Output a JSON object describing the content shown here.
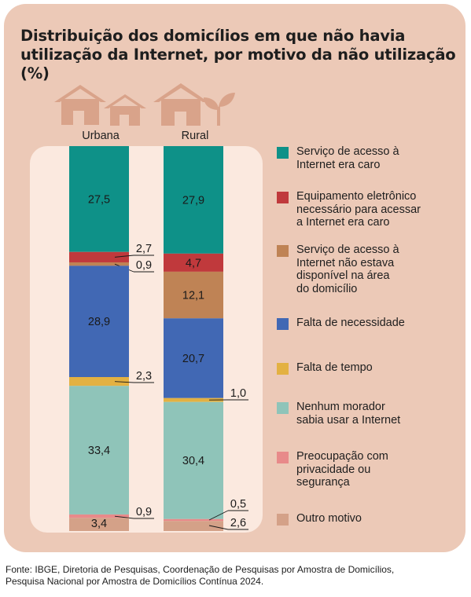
{
  "title_line1": "Distribuição dos domicílios em que não havia",
  "title_line2": "utilização da Internet, por motivo da não utilização (%)",
  "source_line1": "Fonte: IBGE, Diretoria de Pesquisas, Coordenação de Pesquisas por Amostra de Domicílios,",
  "source_line2": "Pesquisa Nacional por Amostra de Domicílios Contínua 2024.",
  "colors": {
    "card_bg": "#ecc9b7",
    "panel_bg": "#fbe9df",
    "house_icon": "#d9a38a"
  },
  "icons": [
    "house-icon",
    "house-icon",
    "house-icon",
    "plant-icon"
  ],
  "legend": [
    {
      "label": "Serviço de acesso à Internet era caro",
      "lines": [
        "Serviço de acesso à",
        "Internet era caro"
      ],
      "color": "#0e9188"
    },
    {
      "label": "Equipamento eletrônico necessário para acessar a Internet era caro",
      "lines": [
        "Equipamento eletrônico",
        "necessário para acessar",
        "a Internet era caro"
      ],
      "color": "#c0393c"
    },
    {
      "label": "Serviço de acesso à Internet não estava disponível na área do domicílio",
      "lines": [
        "Serviço de acesso à",
        "Internet não estava",
        "disponível na área",
        "do domicílio"
      ],
      "color": "#bf8355"
    },
    {
      "label": "Falta de necessidade",
      "lines": [
        "Falta de necessidade"
      ],
      "color": "#4168b4"
    },
    {
      "label": "Falta de tempo",
      "lines": [
        "Falta de tempo"
      ],
      "color": "#e3b142"
    },
    {
      "label": "Nenhum morador sabia usar a Internet",
      "lines": [
        "Nenhum morador",
        "sabia usar a Internet"
      ],
      "color": "#8fc4b9"
    },
    {
      "label": "Preocupação com privacidade ou segurança",
      "lines": [
        "Preocupação com",
        "privacidade ou",
        "segurança"
      ],
      "color": "#e88a8a"
    },
    {
      "label": "Outro motivo",
      "lines": [
        "Outro motivo"
      ],
      "color": "#d4a188"
    }
  ],
  "chart_data": {
    "type": "bar",
    "stacked": true,
    "percent": true,
    "categories": [
      "Urbana",
      "Rural"
    ],
    "ylim": [
      0,
      100
    ],
    "series": [
      {
        "name": "Serviço de acesso à Internet era caro",
        "values": [
          27.5,
          27.9
        ],
        "labels": [
          "27,5",
          "27,9"
        ]
      },
      {
        "name": "Equipamento eletrônico necessário para acessar a Internet era caro",
        "values": [
          2.7,
          4.7
        ],
        "labels": [
          "2,7",
          "4,7"
        ]
      },
      {
        "name": "Serviço de acesso à Internet não estava disponível na área do domicílio",
        "values": [
          0.9,
          12.1
        ],
        "labels": [
          "0,9",
          "12,1"
        ]
      },
      {
        "name": "Falta de necessidade",
        "values": [
          28.9,
          20.7
        ],
        "labels": [
          "28,9",
          "20,7"
        ]
      },
      {
        "name": "Falta de tempo",
        "values": [
          2.3,
          1.0
        ],
        "labels": [
          "2,3",
          "1,0"
        ]
      },
      {
        "name": "Nenhum morador sabia usar a Internet",
        "values": [
          33.4,
          30.4
        ],
        "labels": [
          "33,4",
          "30,4"
        ]
      },
      {
        "name": "Preocupação com privacidade ou segurança",
        "values": [
          0.9,
          0.5
        ],
        "labels": [
          "0,9",
          "0,5"
        ]
      },
      {
        "name": "Outro motivo",
        "values": [
          3.4,
          2.6
        ],
        "labels": [
          "3,4",
          "2,6"
        ]
      }
    ]
  }
}
